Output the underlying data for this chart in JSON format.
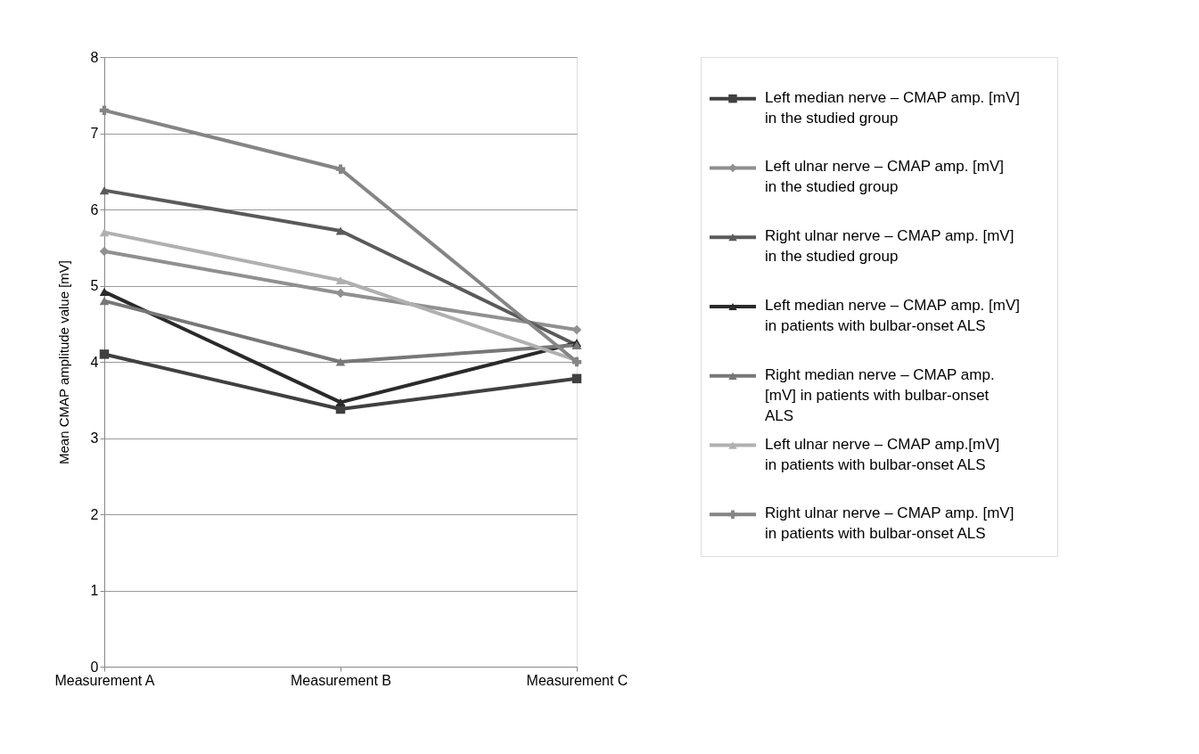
{
  "chart_data": {
    "type": "line",
    "ylabel": "Mean CMAP amplitude value [mV]",
    "categories": [
      "Measurement A",
      "Measurement B",
      "Measurement C"
    ],
    "ylim": [
      0,
      8
    ],
    "yticks": [
      0,
      1,
      2,
      3,
      4,
      5,
      6,
      7,
      8
    ],
    "grid": "y",
    "legend": "right",
    "line_style": "solid",
    "series": [
      {
        "name": "Left median nerve – CMAP amp. [mV] in the studied group",
        "color": "#404040",
        "marker": "square",
        "values": [
          4.1,
          3.38,
          3.78
        ]
      },
      {
        "name": "Left ulnar nerve – CMAP  amp. [mV] in the studied group",
        "color": "#909090",
        "marker": "diamond",
        "values": [
          5.45,
          4.9,
          4.42
        ]
      },
      {
        "name": "Right ulnar nerve – CMAP amp. [mV] in the studied group",
        "color": "#5a5a5a",
        "marker": "triangle",
        "values": [
          6.25,
          5.72,
          4.22
        ]
      },
      {
        "name": "Left median nerve – CMAP amp. [mV] in patients with bulbar-onset ALS",
        "color": "#2a2a2a",
        "marker": "triangle",
        "values": [
          4.92,
          3.47,
          4.25
        ]
      },
      {
        "name": "Right median nerve – CMAP amp. [mV] in patients with bulbar-onset ALS",
        "color": "#777777",
        "marker": "triangle",
        "values": [
          4.8,
          4.0,
          4.22
        ]
      },
      {
        "name": "Left ulnar nerve – CMAP amp.[mV] in patients with bulbar-onset ALS",
        "color": "#b0b0b0",
        "marker": "triangle",
        "values": [
          5.7,
          5.07,
          4.02
        ]
      },
      {
        "name": "Right ulnar nerve – CMAP amp. [mV] in patients with bulbar-onset ALS",
        "color": "#858585",
        "marker": "cross",
        "values": [
          7.3,
          6.53,
          4.0
        ]
      }
    ]
  }
}
